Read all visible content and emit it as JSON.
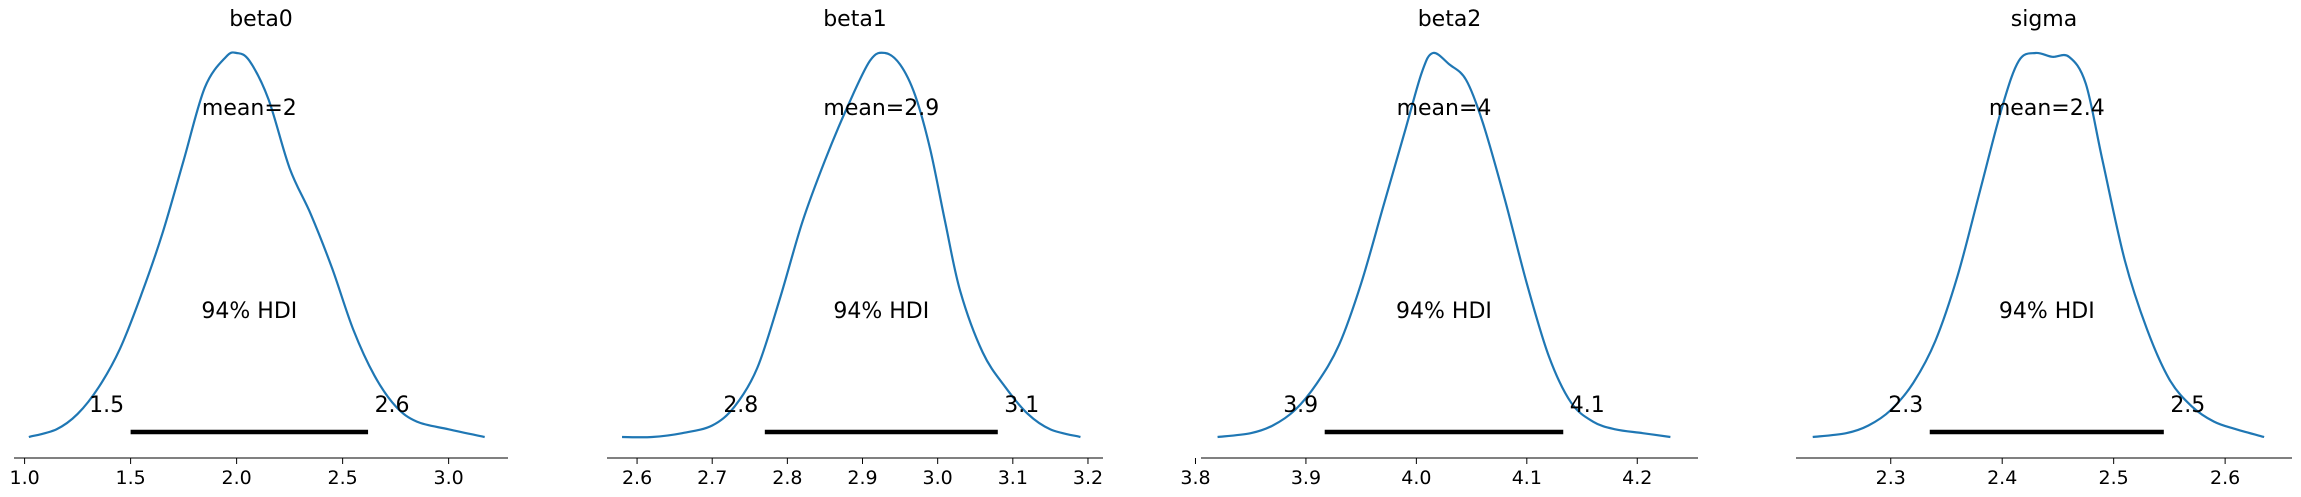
{
  "chart_data": [
    {
      "type": "density",
      "title": "beta0",
      "mean_label": "mean=2",
      "hdi_label": "94% HDI",
      "hdi": [
        1.5,
        2.62
      ],
      "hdi_low_label": "1.5",
      "hdi_high_label": "2.6",
      "xlim": [
        0.95,
        3.28
      ],
      "ticks": [
        1.0,
        1.5,
        2.0,
        2.5,
        3.0
      ],
      "tick_labels": [
        "1.0",
        "1.5",
        "2.0",
        "2.5",
        "3.0"
      ],
      "density": {
        "x": [
          1.02,
          1.15,
          1.25,
          1.35,
          1.45,
          1.55,
          1.65,
          1.75,
          1.85,
          1.95,
          2.0,
          2.06,
          2.15,
          2.25,
          2.35,
          2.45,
          2.55,
          2.65,
          2.75,
          2.85,
          3.0,
          3.17
        ],
        "y": [
          0.0,
          0.02,
          0.06,
          0.13,
          0.23,
          0.37,
          0.53,
          0.72,
          0.91,
          0.99,
          1.0,
          0.98,
          0.88,
          0.7,
          0.58,
          0.44,
          0.28,
          0.16,
          0.08,
          0.04,
          0.02,
          0.0
        ]
      }
    },
    {
      "type": "density",
      "title": "beta1",
      "mean_label": "mean=2.9",
      "hdi_label": "94% HDI",
      "hdi": [
        2.77,
        3.08
      ],
      "hdi_low_label": "2.8",
      "hdi_high_label": "3.1",
      "xlim": [
        2.56,
        3.22
      ],
      "ticks": [
        2.6,
        2.7,
        2.8,
        2.9,
        3.0,
        3.1,
        3.2
      ],
      "tick_labels": [
        "2.6",
        "2.7",
        "2.8",
        "2.9",
        "3.0",
        "3.1",
        "3.2"
      ],
      "density": {
        "x": [
          2.58,
          2.62,
          2.66,
          2.7,
          2.73,
          2.76,
          2.79,
          2.82,
          2.85,
          2.88,
          2.91,
          2.93,
          2.95,
          2.97,
          2.99,
          3.01,
          3.03,
          3.06,
          3.09,
          3.12,
          3.15,
          3.19
        ],
        "y": [
          0.0,
          0.0,
          0.01,
          0.03,
          0.08,
          0.18,
          0.36,
          0.56,
          0.72,
          0.86,
          0.98,
          1.0,
          0.97,
          0.89,
          0.75,
          0.56,
          0.38,
          0.22,
          0.13,
          0.06,
          0.02,
          0.0
        ]
      }
    },
    {
      "type": "density",
      "title": "beta2",
      "mean_label": "mean=4",
      "hdi_label": "94% HDI",
      "hdi": [
        3.917,
        4.133
      ],
      "hdi_low_label": "3.9",
      "hdi_high_label": "4.1",
      "xlim": [
        3.805,
        4.255
      ],
      "ticks": [
        3.8,
        3.9,
        4.0,
        4.1,
        4.2
      ],
      "tick_labels": [
        "3.8",
        "3.9",
        "4.0",
        "4.1",
        "4.2"
      ],
      "density": {
        "x": [
          3.82,
          3.85,
          3.87,
          3.89,
          3.91,
          3.93,
          3.95,
          3.97,
          3.99,
          4.005,
          4.015,
          4.03,
          4.045,
          4.06,
          4.08,
          4.1,
          4.12,
          4.14,
          4.16,
          4.18,
          4.205,
          4.23
        ],
        "y": [
          0.0,
          0.01,
          0.03,
          0.07,
          0.14,
          0.24,
          0.4,
          0.6,
          0.8,
          0.95,
          1.0,
          0.97,
          0.93,
          0.82,
          0.62,
          0.4,
          0.21,
          0.09,
          0.04,
          0.02,
          0.01,
          0.0
        ]
      }
    },
    {
      "type": "density",
      "title": "sigma",
      "mean_label": "mean=2.4",
      "hdi_label": "94% HDI",
      "hdi": [
        2.335,
        2.545
      ],
      "hdi_low_label": "2.3",
      "hdi_high_label": "2.5",
      "xlim": [
        2.215,
        2.66
      ],
      "ticks": [
        2.3,
        2.4,
        2.5,
        2.6
      ],
      "tick_labels": [
        "2.3",
        "2.4",
        "2.5",
        "2.6"
      ],
      "density": {
        "x": [
          2.23,
          2.26,
          2.28,
          2.3,
          2.32,
          2.34,
          2.36,
          2.38,
          2.4,
          2.415,
          2.43,
          2.445,
          2.46,
          2.475,
          2.49,
          2.51,
          2.53,
          2.55,
          2.57,
          2.59,
          2.61,
          2.635
        ],
        "y": [
          0.0,
          0.01,
          0.03,
          0.07,
          0.14,
          0.25,
          0.42,
          0.64,
          0.86,
          0.98,
          1.0,
          0.99,
          0.99,
          0.92,
          0.72,
          0.46,
          0.28,
          0.15,
          0.08,
          0.04,
          0.02,
          0.0
        ]
      }
    }
  ]
}
